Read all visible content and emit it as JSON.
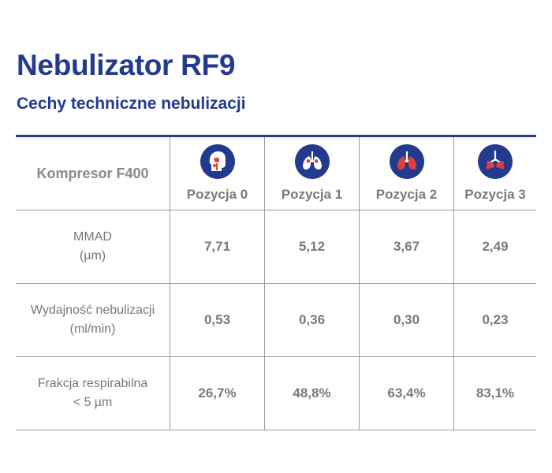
{
  "title": "Nebulizator RF9",
  "subtitle": "Cechy techniczne nebulizacji",
  "table": {
    "corner_label": "Kompresor F400",
    "columns": [
      {
        "label": "Pozycja 0",
        "icon": "head-airway-icon"
      },
      {
        "label": "Pozycja 1",
        "icon": "lungs-upper-icon"
      },
      {
        "label": "Pozycja 2",
        "icon": "lungs-middle-icon"
      },
      {
        "label": "Pozycja 3",
        "icon": "lungs-deep-icon"
      }
    ],
    "rows": [
      {
        "label_line1": "MMAD",
        "label_line2": "(µm)",
        "values": [
          "7,71",
          "5,12",
          "3,67",
          "2,49"
        ]
      },
      {
        "label_line1": "Wydajność nebulizacji",
        "label_line2": "(ml/min)",
        "values": [
          "0,53",
          "0,36",
          "0,30",
          "0,23"
        ]
      },
      {
        "label_line1": "Frakcja respirabilna",
        "label_line2": "< 5 µm",
        "values": [
          "26,7%",
          "48,8%",
          "63,4%",
          "83,1%"
        ]
      }
    ]
  },
  "colors": {
    "brand_blue": "#223a8f",
    "icon_red": "#e0413a",
    "text_gray": "#7a7a7a",
    "rule_gray": "#9a9a9a"
  }
}
